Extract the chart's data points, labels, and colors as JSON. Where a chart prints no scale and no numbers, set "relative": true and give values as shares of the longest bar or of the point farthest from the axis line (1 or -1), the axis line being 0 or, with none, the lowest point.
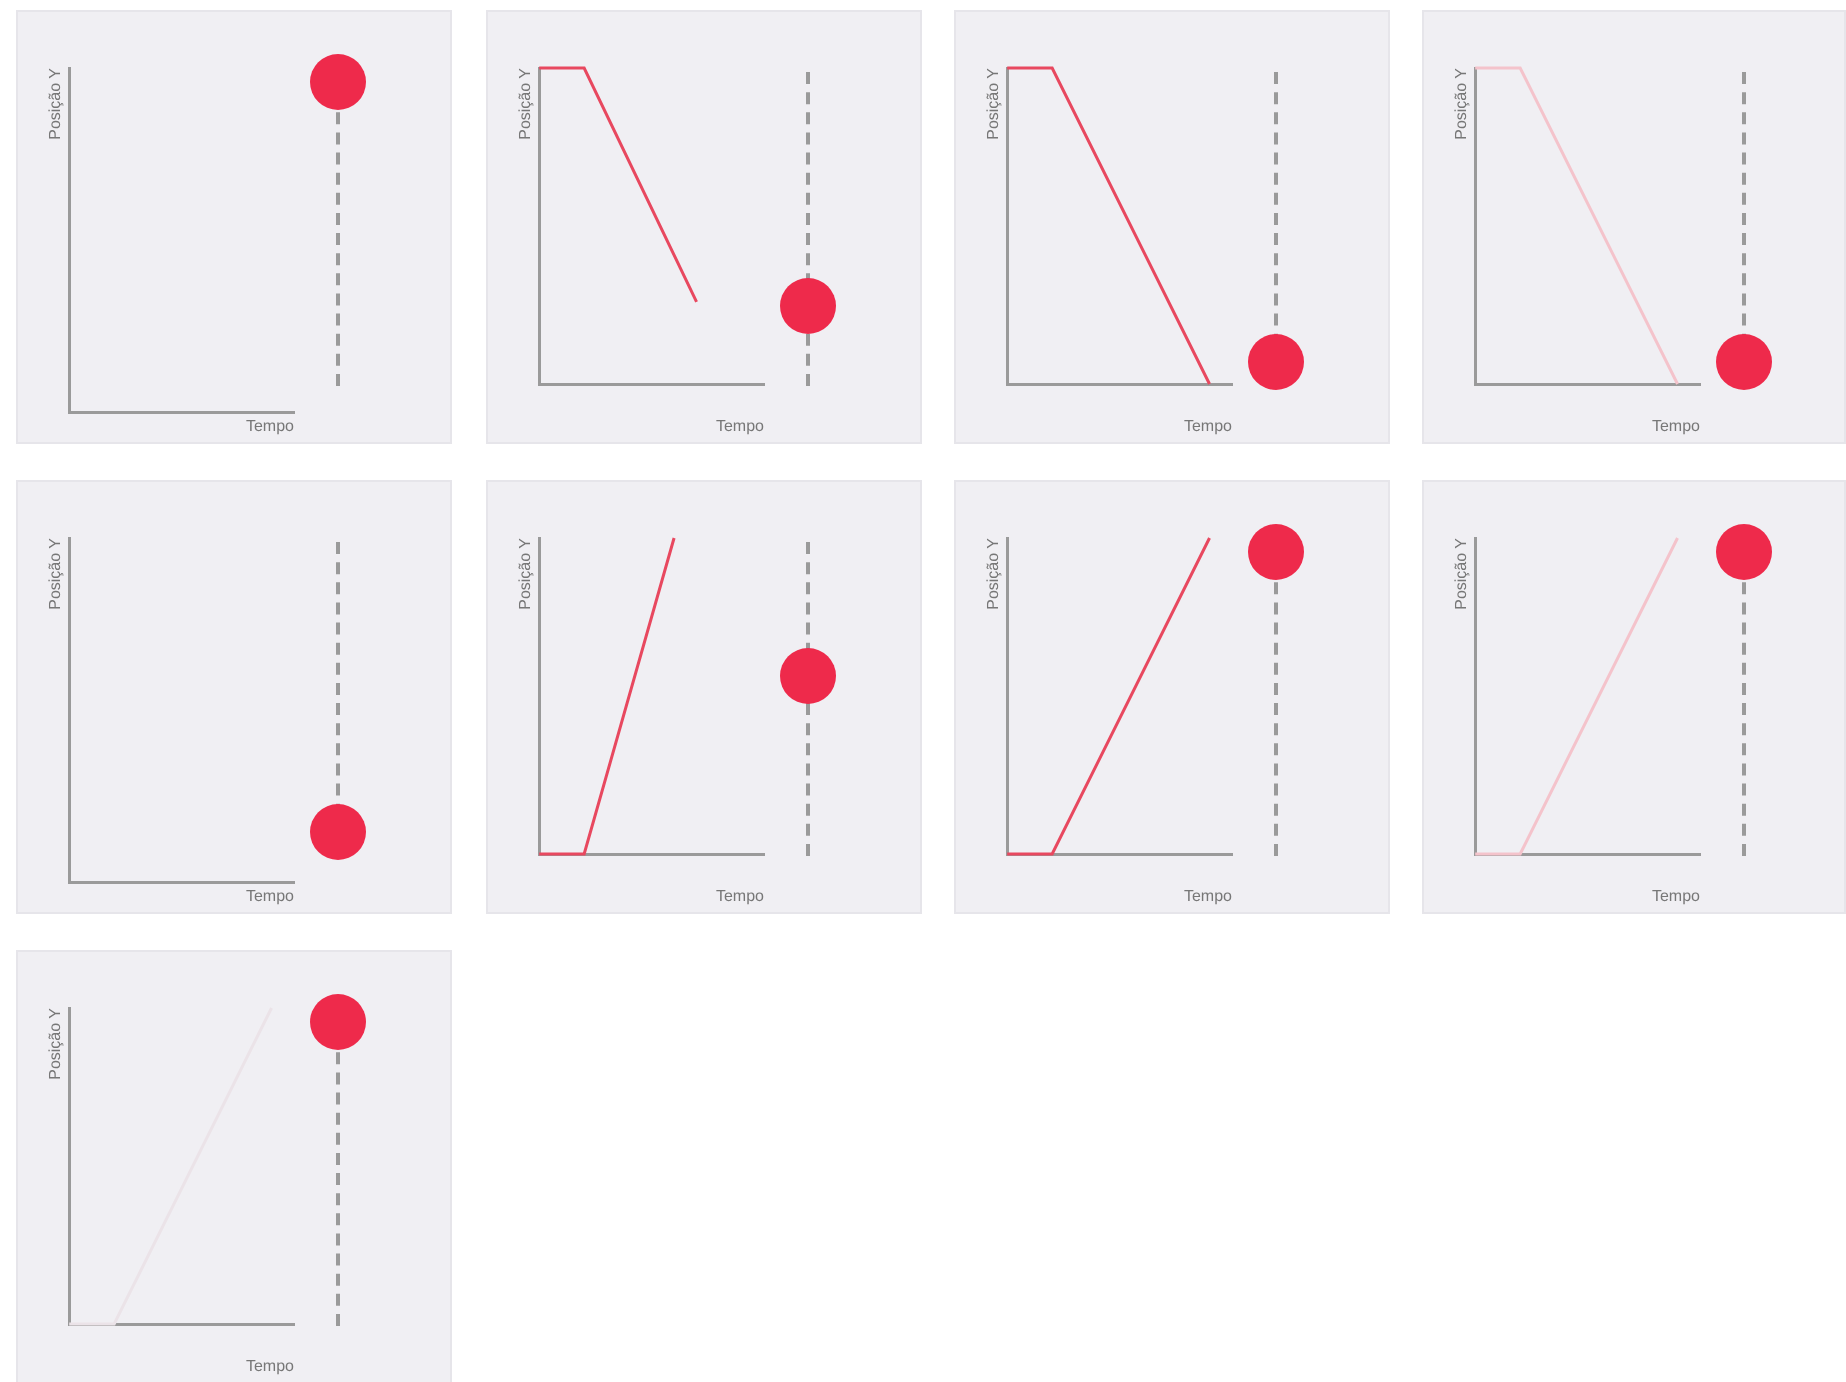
{
  "chart_data": [
    {
      "type": "other",
      "xlabel": "Tempo",
      "ylabel": "Posição Y"
    },
    {
      "type": "line",
      "xlabel": "Tempo",
      "ylabel": "Posição Y",
      "categories": [
        null,
        null,
        null,
        null,
        null,
        null,
        null,
        null,
        null,
        null,
        null
      ],
      "series": [
        {
          "color": "#e8485f",
          "values": [
            1,
            null,
            1,
            null,
            null,
            null,
            null,
            0.26,
            null,
            null,
            null
          ]
        }
      ],
      "relative": true,
      "marker": "none"
    },
    {
      "type": "line",
      "xlabel": "Tempo",
      "ylabel": "Posição Y",
      "categories": [
        null,
        null,
        null,
        null,
        null,
        null,
        null,
        null,
        null,
        null,
        null
      ],
      "series": [
        {
          "color": "#e8485f",
          "values": [
            1,
            null,
            1,
            null,
            null,
            null,
            null,
            null,
            null,
            0,
            null
          ]
        }
      ],
      "relative": true,
      "marker": "none"
    },
    {
      "type": "line",
      "xlabel": "Tempo",
      "ylabel": "Posição Y",
      "categories": [
        null,
        null,
        null,
        null,
        null,
        null,
        null,
        null,
        null,
        null,
        null
      ],
      "series": [
        {
          "color": "#f4c3cb",
          "values": [
            1,
            null,
            1,
            null,
            null,
            null,
            null,
            null,
            null,
            0,
            null
          ]
        }
      ],
      "relative": true,
      "marker": "none"
    },
    {
      "type": "other",
      "xlabel": "Tempo",
      "ylabel": "Posição Y"
    },
    {
      "type": "line",
      "xlabel": "Tempo",
      "ylabel": "Posição Y",
      "categories": [
        null,
        null,
        null,
        null,
        null,
        null,
        null,
        null,
        null,
        null,
        null
      ],
      "series": [
        {
          "color": "#e8485f",
          "values": [
            0,
            null,
            0,
            null,
            null,
            null,
            1,
            null,
            null,
            null,
            null
          ]
        }
      ],
      "relative": true,
      "marker": "none"
    },
    {
      "type": "line",
      "xlabel": "Tempo",
      "ylabel": "Posição Y",
      "categories": [
        null,
        null,
        null,
        null,
        null,
        null,
        null,
        null,
        null,
        null,
        null
      ],
      "series": [
        {
          "color": "#e8485f",
          "values": [
            0,
            null,
            0,
            null,
            null,
            null,
            null,
            null,
            null,
            1,
            null
          ]
        }
      ],
      "relative": true,
      "marker": "none"
    },
    {
      "type": "line",
      "xlabel": "Tempo",
      "ylabel": "Posição Y",
      "categories": [
        null,
        null,
        null,
        null,
        null,
        null,
        null,
        null,
        null,
        null,
        null
      ],
      "series": [
        {
          "color": "#f4c3cb",
          "values": [
            0,
            null,
            0,
            null,
            null,
            null,
            null,
            null,
            null,
            1,
            null
          ]
        }
      ],
      "relative": true,
      "marker": "none"
    },
    {
      "type": "line",
      "xlabel": "Tempo",
      "ylabel": "Posição Y",
      "categories": [
        null,
        null,
        null,
        null,
        null,
        null,
        null,
        null,
        null,
        null,
        null
      ],
      "series": [
        {
          "color": "#ebe3e8",
          "values": [
            0,
            null,
            0,
            null,
            null,
            null,
            null,
            null,
            null,
            1,
            null
          ]
        }
      ],
      "relative": true,
      "marker": "none"
    }
  ]
}
